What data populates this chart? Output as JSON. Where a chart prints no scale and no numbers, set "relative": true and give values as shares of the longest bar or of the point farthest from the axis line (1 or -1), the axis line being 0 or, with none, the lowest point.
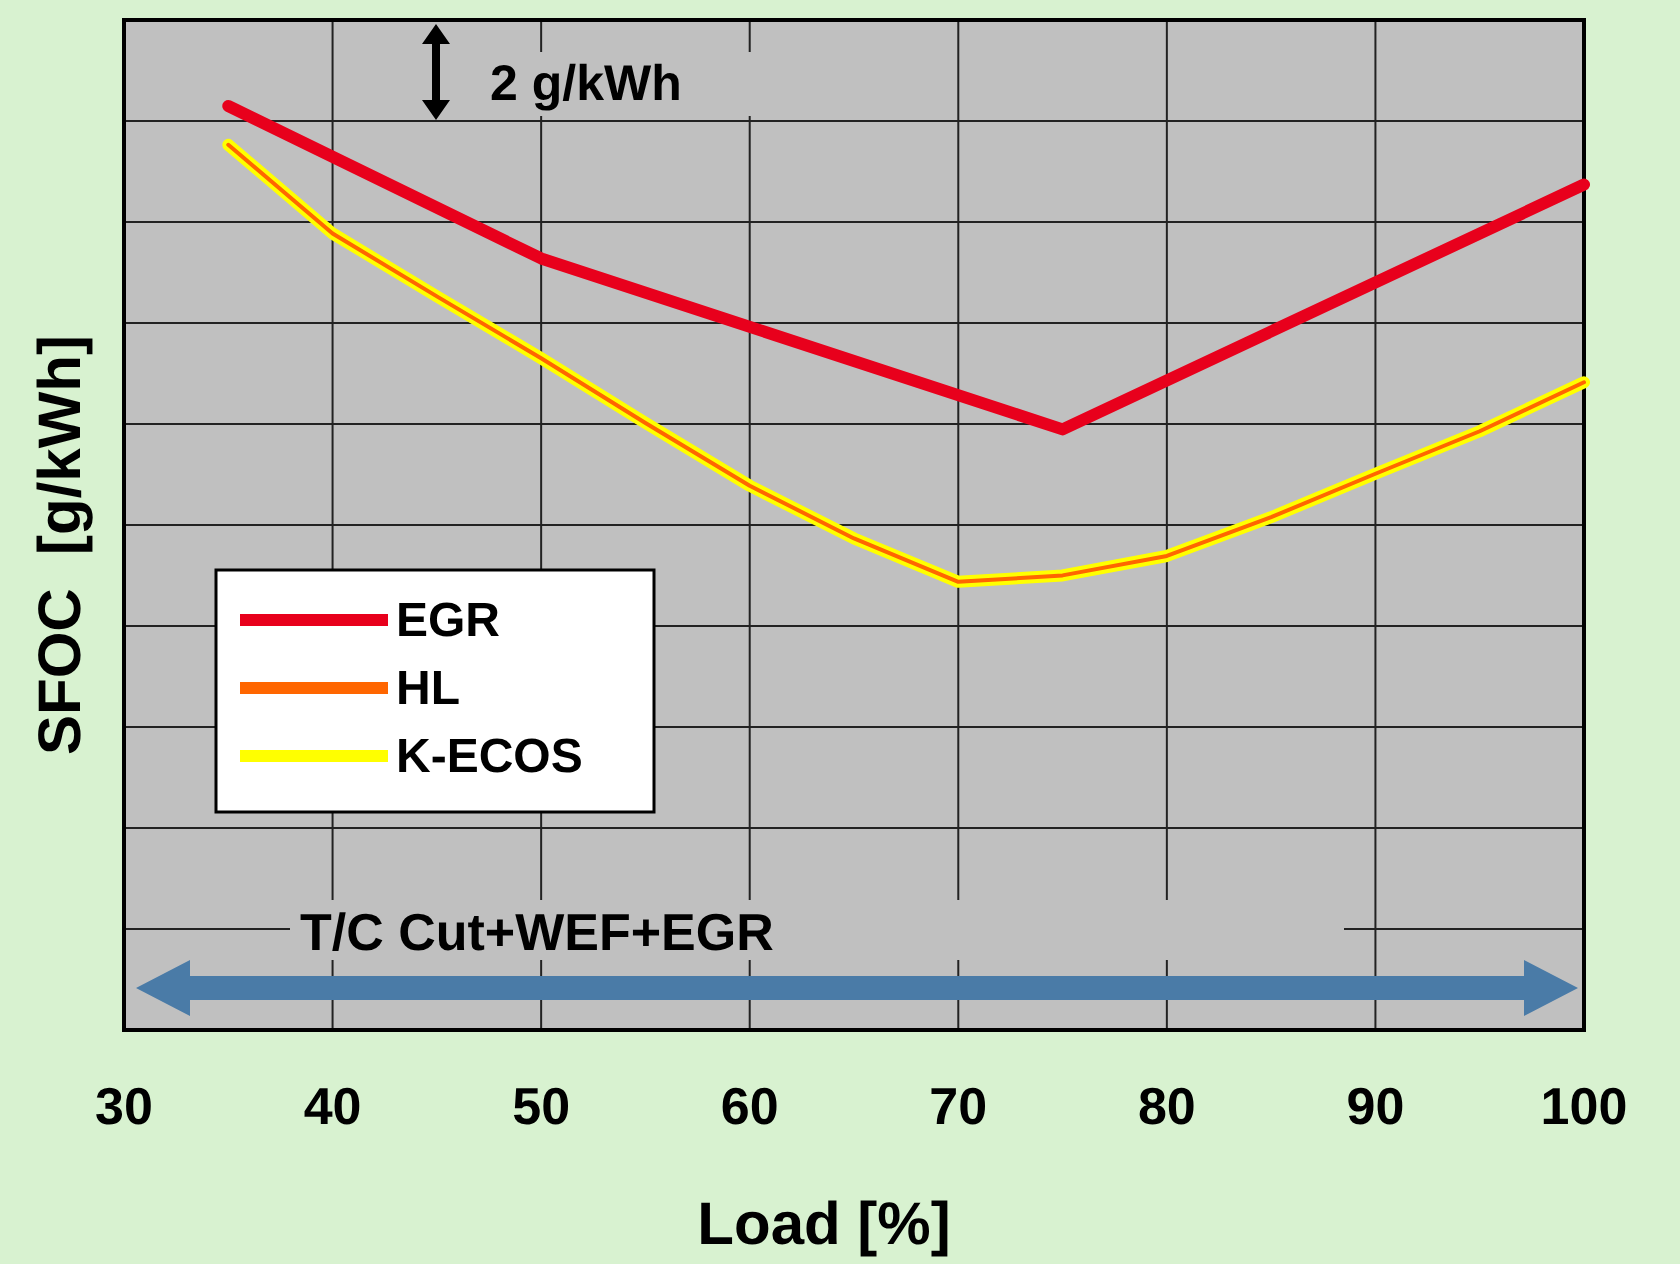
{
  "chart_data": {
    "type": "line",
    "xlabel": "Load [%]",
    "ylabel": "SFOC  [g/kWh]",
    "relative": true,
    "xlim": [
      30,
      100
    ],
    "xticks": [
      30,
      40,
      50,
      60,
      70,
      80,
      90,
      100
    ],
    "tick_labels": "x",
    "grid": true,
    "legend": "left",
    "annotations": [
      "2 g/kWh",
      "T/C Cut+WEF+EGR"
    ],
    "series": [
      {
        "name": "EGR",
        "color": "#e8001c",
        "x": [
          35,
          50,
          75,
          100
        ],
        "values": [
          1,
          0.835,
          0.65,
          0.915
        ]
      },
      {
        "name": "HL",
        "color": "#ff6600",
        "x": [
          35,
          40,
          45,
          50,
          55,
          60,
          65,
          70,
          75,
          80,
          85,
          90,
          95,
          100
        ],
        "values": [
          0.958,
          0.862,
          0.794,
          0.727,
          0.657,
          0.589,
          0.532,
          0.485,
          0.492,
          0.513,
          0.555,
          0.602,
          0.648,
          0.701
        ]
      },
      {
        "name": "K-ECOS",
        "color": "#ffff00",
        "x": [
          35,
          40,
          45,
          50,
          55,
          60,
          65,
          70,
          75,
          80,
          85,
          90,
          95,
          100
        ],
        "values": [
          0.958,
          0.862,
          0.794,
          0.727,
          0.657,
          0.589,
          0.532,
          0.485,
          0.492,
          0.513,
          0.555,
          0.602,
          0.648,
          0.701
        ]
      }
    ]
  }
}
